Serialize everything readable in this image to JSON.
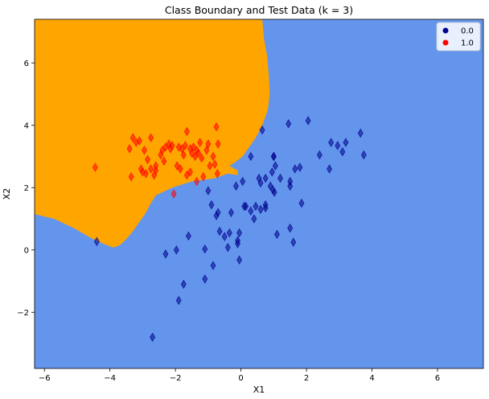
{
  "chart_data": {
    "type": "scatter",
    "title": "Class Boundary and Test Data (k = 3)",
    "xlabel": "X1",
    "ylabel": "X2",
    "xlim": [
      -6.3,
      7.4
    ],
    "ylim": [
      -3.8,
      7.4
    ],
    "xticks": [
      -6,
      -4,
      -2,
      0,
      2,
      4,
      6
    ],
    "yticks": [
      -2,
      0,
      2,
      4,
      6
    ],
    "xtick_labels": [
      "−6",
      "−4",
      "−2",
      "0",
      "2",
      "4",
      "6"
    ],
    "ytick_labels": [
      "−2",
      "0",
      "2",
      "4",
      "6"
    ],
    "grid": false,
    "legend_position": "top-right",
    "colors": {
      "region_0": "#6495ED",
      "region_1": "#FFA500",
      "marker_0": "#00008B",
      "marker_1": "#FF0000"
    },
    "legend": [
      {
        "label": "0.0",
        "color": "#00008B"
      },
      {
        "label": "1.0",
        "color": "#FF0000"
      }
    ],
    "region_1_boundary": [
      [
        -6.3,
        7.4
      ],
      [
        0.65,
        7.4
      ],
      [
        0.7,
        6.8
      ],
      [
        0.8,
        6.2
      ],
      [
        0.85,
        5.6
      ],
      [
        0.88,
        5.0
      ],
      [
        0.82,
        4.5
      ],
      [
        0.65,
        4.0
      ],
      [
        0.45,
        3.6
      ],
      [
        0.25,
        3.3
      ],
      [
        0.05,
        3.0
      ],
      [
        -0.2,
        2.8
      ],
      [
        -0.35,
        2.7
      ],
      [
        -0.1,
        2.55
      ],
      [
        -0.1,
        2.4
      ],
      [
        -0.4,
        2.45
      ],
      [
        -0.8,
        2.3
      ],
      [
        -1.5,
        2.2
      ],
      [
        -2.1,
        2.0
      ],
      [
        -2.6,
        1.75
      ],
      [
        -2.75,
        1.5
      ],
      [
        -2.9,
        1.2
      ],
      [
        -3.1,
        0.9
      ],
      [
        -3.3,
        0.6
      ],
      [
        -3.5,
        0.35
      ],
      [
        -3.7,
        0.15
      ],
      [
        -3.9,
        0.08
      ],
      [
        -4.2,
        0.2
      ],
      [
        -4.6,
        0.4
      ],
      [
        -5.1,
        0.7
      ],
      [
        -5.7,
        1.0
      ],
      [
        -6.3,
        1.15
      ]
    ],
    "series": [
      {
        "name": "0.0",
        "points": [
          [
            -4.4,
            0.27
          ],
          [
            -2.7,
            -2.8
          ],
          [
            -2.3,
            -0.13
          ],
          [
            -1.97,
            0.0
          ],
          [
            -1.9,
            -1.62
          ],
          [
            -1.75,
            -1.1
          ],
          [
            -1.6,
            0.45
          ],
          [
            -1.1,
            -0.93
          ],
          [
            -1.1,
            0.03
          ],
          [
            -1.0,
            1.9
          ],
          [
            -0.9,
            1.45
          ],
          [
            -0.85,
            -0.5
          ],
          [
            -0.75,
            1.1
          ],
          [
            -0.7,
            1.2
          ],
          [
            -0.65,
            0.6
          ],
          [
            -0.5,
            0.43
          ],
          [
            -0.4,
            0.08
          ],
          [
            -0.35,
            0.55
          ],
          [
            -0.3,
            1.2
          ],
          [
            -0.15,
            2.05
          ],
          [
            -0.1,
            0.2
          ],
          [
            -0.1,
            0.3
          ],
          [
            -0.05,
            -0.32
          ],
          [
            -0.05,
            0.55
          ],
          [
            0.05,
            2.2
          ],
          [
            0.1,
            1.4
          ],
          [
            0.15,
            1.4
          ],
          [
            0.3,
            1.25
          ],
          [
            0.3,
            3.0
          ],
          [
            0.4,
            1.0
          ],
          [
            0.45,
            1.4
          ],
          [
            0.55,
            2.3
          ],
          [
            0.6,
            2.15
          ],
          [
            0.6,
            1.3
          ],
          [
            0.65,
            3.85
          ],
          [
            0.75,
            2.3
          ],
          [
            0.75,
            1.45
          ],
          [
            0.75,
            1.35
          ],
          [
            0.9,
            2.05
          ],
          [
            0.95,
            2.5
          ],
          [
            0.98,
            1.92
          ],
          [
            1.0,
            3.0
          ],
          [
            1.02,
            1.85
          ],
          [
            1.05,
            2.7
          ],
          [
            1.1,
            0.5
          ],
          [
            1.2,
            2.3
          ],
          [
            1.5,
            2.2
          ],
          [
            1.5,
            2.05
          ],
          [
            1.45,
            4.05
          ],
          [
            1.5,
            0.7
          ],
          [
            1.6,
            0.25
          ],
          [
            1.65,
            2.6
          ],
          [
            1.8,
            2.65
          ],
          [
            1.85,
            1.5
          ],
          [
            2.05,
            4.15
          ],
          [
            2.4,
            3.05
          ],
          [
            2.7,
            2.6
          ],
          [
            2.75,
            3.45
          ],
          [
            2.95,
            3.35
          ],
          [
            3.1,
            3.15
          ],
          [
            3.2,
            3.45
          ],
          [
            3.65,
            3.75
          ],
          [
            3.75,
            3.05
          ],
          [
            1.0,
            3.0
          ]
        ]
      },
      {
        "name": "1.0",
        "points": [
          [
            -4.45,
            2.65
          ],
          [
            -3.4,
            3.25
          ],
          [
            -3.35,
            2.35
          ],
          [
            -3.3,
            3.6
          ],
          [
            -3.2,
            3.45
          ],
          [
            -3.1,
            3.5
          ],
          [
            -3.05,
            2.6
          ],
          [
            -3.0,
            2.5
          ],
          [
            -2.9,
            2.45
          ],
          [
            -2.95,
            3.2
          ],
          [
            -2.85,
            2.9
          ],
          [
            -2.75,
            3.6
          ],
          [
            -2.75,
            2.6
          ],
          [
            -2.65,
            2.4
          ],
          [
            -2.6,
            2.55
          ],
          [
            -2.6,
            2.7
          ],
          [
            -2.45,
            3.05
          ],
          [
            -2.4,
            3.2
          ],
          [
            -2.35,
            2.85
          ],
          [
            -2.3,
            3.3
          ],
          [
            -2.2,
            3.4
          ],
          [
            -2.15,
            3.25
          ],
          [
            -2.1,
            3.35
          ],
          [
            -2.05,
            1.8
          ],
          [
            -1.95,
            2.7
          ],
          [
            -1.9,
            3.3
          ],
          [
            -1.85,
            2.6
          ],
          [
            -1.8,
            3.25
          ],
          [
            -1.75,
            3.05
          ],
          [
            -1.7,
            3.35
          ],
          [
            -1.65,
            3.8
          ],
          [
            -1.65,
            2.4
          ],
          [
            -1.55,
            2.5
          ],
          [
            -1.55,
            3.25
          ],
          [
            -1.5,
            3.1
          ],
          [
            -1.45,
            3.3
          ],
          [
            -1.4,
            3.0
          ],
          [
            -1.35,
            3.2
          ],
          [
            -1.35,
            2.2
          ],
          [
            -1.3,
            3.1
          ],
          [
            -1.25,
            3.45
          ],
          [
            -1.2,
            2.95
          ],
          [
            -1.15,
            2.35
          ],
          [
            -1.05,
            3.2
          ],
          [
            -1.0,
            3.4
          ],
          [
            -0.95,
            2.7
          ],
          [
            -0.85,
            3.0
          ],
          [
            -0.8,
            2.75
          ],
          [
            -0.75,
            3.95
          ],
          [
            -0.72,
            2.45
          ],
          [
            -0.7,
            3.4
          ]
        ]
      }
    ]
  }
}
